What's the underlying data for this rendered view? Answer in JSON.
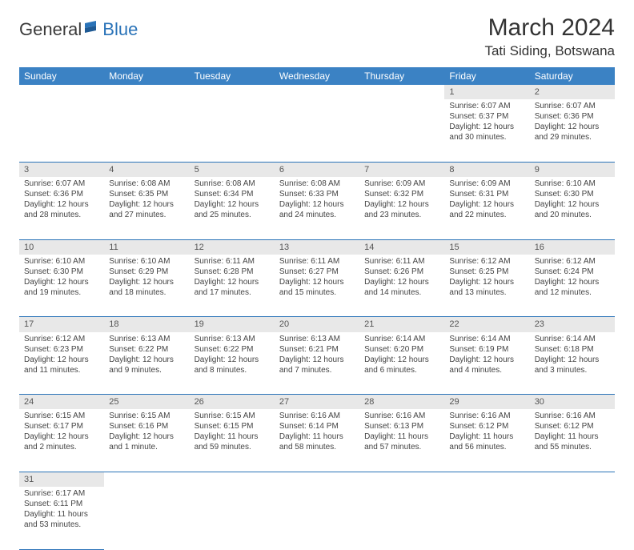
{
  "brand": {
    "part1": "General",
    "part2": "Blue"
  },
  "title": "March 2024",
  "location": "Tati Siding, Botswana",
  "colors": {
    "header_bg": "#3b82c4",
    "header_text": "#ffffff",
    "daynum_bg": "#e8e8e8",
    "rule": "#2a73b8",
    "brand_blue": "#2a73b8",
    "text": "#333333"
  },
  "day_headers": [
    "Sunday",
    "Monday",
    "Tuesday",
    "Wednesday",
    "Thursday",
    "Friday",
    "Saturday"
  ],
  "weeks": [
    {
      "nums": [
        "",
        "",
        "",
        "",
        "",
        "1",
        "2"
      ],
      "cells": [
        null,
        null,
        null,
        null,
        null,
        {
          "sunrise": "Sunrise: 6:07 AM",
          "sunset": "Sunset: 6:37 PM",
          "day1": "Daylight: 12 hours",
          "day2": "and 30 minutes."
        },
        {
          "sunrise": "Sunrise: 6:07 AM",
          "sunset": "Sunset: 6:36 PM",
          "day1": "Daylight: 12 hours",
          "day2": "and 29 minutes."
        }
      ]
    },
    {
      "nums": [
        "3",
        "4",
        "5",
        "6",
        "7",
        "8",
        "9"
      ],
      "cells": [
        {
          "sunrise": "Sunrise: 6:07 AM",
          "sunset": "Sunset: 6:36 PM",
          "day1": "Daylight: 12 hours",
          "day2": "and 28 minutes."
        },
        {
          "sunrise": "Sunrise: 6:08 AM",
          "sunset": "Sunset: 6:35 PM",
          "day1": "Daylight: 12 hours",
          "day2": "and 27 minutes."
        },
        {
          "sunrise": "Sunrise: 6:08 AM",
          "sunset": "Sunset: 6:34 PM",
          "day1": "Daylight: 12 hours",
          "day2": "and 25 minutes."
        },
        {
          "sunrise": "Sunrise: 6:08 AM",
          "sunset": "Sunset: 6:33 PM",
          "day1": "Daylight: 12 hours",
          "day2": "and 24 minutes."
        },
        {
          "sunrise": "Sunrise: 6:09 AM",
          "sunset": "Sunset: 6:32 PM",
          "day1": "Daylight: 12 hours",
          "day2": "and 23 minutes."
        },
        {
          "sunrise": "Sunrise: 6:09 AM",
          "sunset": "Sunset: 6:31 PM",
          "day1": "Daylight: 12 hours",
          "day2": "and 22 minutes."
        },
        {
          "sunrise": "Sunrise: 6:10 AM",
          "sunset": "Sunset: 6:30 PM",
          "day1": "Daylight: 12 hours",
          "day2": "and 20 minutes."
        }
      ]
    },
    {
      "nums": [
        "10",
        "11",
        "12",
        "13",
        "14",
        "15",
        "16"
      ],
      "cells": [
        {
          "sunrise": "Sunrise: 6:10 AM",
          "sunset": "Sunset: 6:30 PM",
          "day1": "Daylight: 12 hours",
          "day2": "and 19 minutes."
        },
        {
          "sunrise": "Sunrise: 6:10 AM",
          "sunset": "Sunset: 6:29 PM",
          "day1": "Daylight: 12 hours",
          "day2": "and 18 minutes."
        },
        {
          "sunrise": "Sunrise: 6:11 AM",
          "sunset": "Sunset: 6:28 PM",
          "day1": "Daylight: 12 hours",
          "day2": "and 17 minutes."
        },
        {
          "sunrise": "Sunrise: 6:11 AM",
          "sunset": "Sunset: 6:27 PM",
          "day1": "Daylight: 12 hours",
          "day2": "and 15 minutes."
        },
        {
          "sunrise": "Sunrise: 6:11 AM",
          "sunset": "Sunset: 6:26 PM",
          "day1": "Daylight: 12 hours",
          "day2": "and 14 minutes."
        },
        {
          "sunrise": "Sunrise: 6:12 AM",
          "sunset": "Sunset: 6:25 PM",
          "day1": "Daylight: 12 hours",
          "day2": "and 13 minutes."
        },
        {
          "sunrise": "Sunrise: 6:12 AM",
          "sunset": "Sunset: 6:24 PM",
          "day1": "Daylight: 12 hours",
          "day2": "and 12 minutes."
        }
      ]
    },
    {
      "nums": [
        "17",
        "18",
        "19",
        "20",
        "21",
        "22",
        "23"
      ],
      "cells": [
        {
          "sunrise": "Sunrise: 6:12 AM",
          "sunset": "Sunset: 6:23 PM",
          "day1": "Daylight: 12 hours",
          "day2": "and 11 minutes."
        },
        {
          "sunrise": "Sunrise: 6:13 AM",
          "sunset": "Sunset: 6:22 PM",
          "day1": "Daylight: 12 hours",
          "day2": "and 9 minutes."
        },
        {
          "sunrise": "Sunrise: 6:13 AM",
          "sunset": "Sunset: 6:22 PM",
          "day1": "Daylight: 12 hours",
          "day2": "and 8 minutes."
        },
        {
          "sunrise": "Sunrise: 6:13 AM",
          "sunset": "Sunset: 6:21 PM",
          "day1": "Daylight: 12 hours",
          "day2": "and 7 minutes."
        },
        {
          "sunrise": "Sunrise: 6:14 AM",
          "sunset": "Sunset: 6:20 PM",
          "day1": "Daylight: 12 hours",
          "day2": "and 6 minutes."
        },
        {
          "sunrise": "Sunrise: 6:14 AM",
          "sunset": "Sunset: 6:19 PM",
          "day1": "Daylight: 12 hours",
          "day2": "and 4 minutes."
        },
        {
          "sunrise": "Sunrise: 6:14 AM",
          "sunset": "Sunset: 6:18 PM",
          "day1": "Daylight: 12 hours",
          "day2": "and 3 minutes."
        }
      ]
    },
    {
      "nums": [
        "24",
        "25",
        "26",
        "27",
        "28",
        "29",
        "30"
      ],
      "cells": [
        {
          "sunrise": "Sunrise: 6:15 AM",
          "sunset": "Sunset: 6:17 PM",
          "day1": "Daylight: 12 hours",
          "day2": "and 2 minutes."
        },
        {
          "sunrise": "Sunrise: 6:15 AM",
          "sunset": "Sunset: 6:16 PM",
          "day1": "Daylight: 12 hours",
          "day2": "and 1 minute."
        },
        {
          "sunrise": "Sunrise: 6:15 AM",
          "sunset": "Sunset: 6:15 PM",
          "day1": "Daylight: 11 hours",
          "day2": "and 59 minutes."
        },
        {
          "sunrise": "Sunrise: 6:16 AM",
          "sunset": "Sunset: 6:14 PM",
          "day1": "Daylight: 11 hours",
          "day2": "and 58 minutes."
        },
        {
          "sunrise": "Sunrise: 6:16 AM",
          "sunset": "Sunset: 6:13 PM",
          "day1": "Daylight: 11 hours",
          "day2": "and 57 minutes."
        },
        {
          "sunrise": "Sunrise: 6:16 AM",
          "sunset": "Sunset: 6:12 PM",
          "day1": "Daylight: 11 hours",
          "day2": "and 56 minutes."
        },
        {
          "sunrise": "Sunrise: 6:16 AM",
          "sunset": "Sunset: 6:12 PM",
          "day1": "Daylight: 11 hours",
          "day2": "and 55 minutes."
        }
      ]
    },
    {
      "nums": [
        "31",
        "",
        "",
        "",
        "",
        "",
        ""
      ],
      "cells": [
        {
          "sunrise": "Sunrise: 6:17 AM",
          "sunset": "Sunset: 6:11 PM",
          "day1": "Daylight: 11 hours",
          "day2": "and 53 minutes."
        },
        null,
        null,
        null,
        null,
        null,
        null
      ]
    }
  ]
}
